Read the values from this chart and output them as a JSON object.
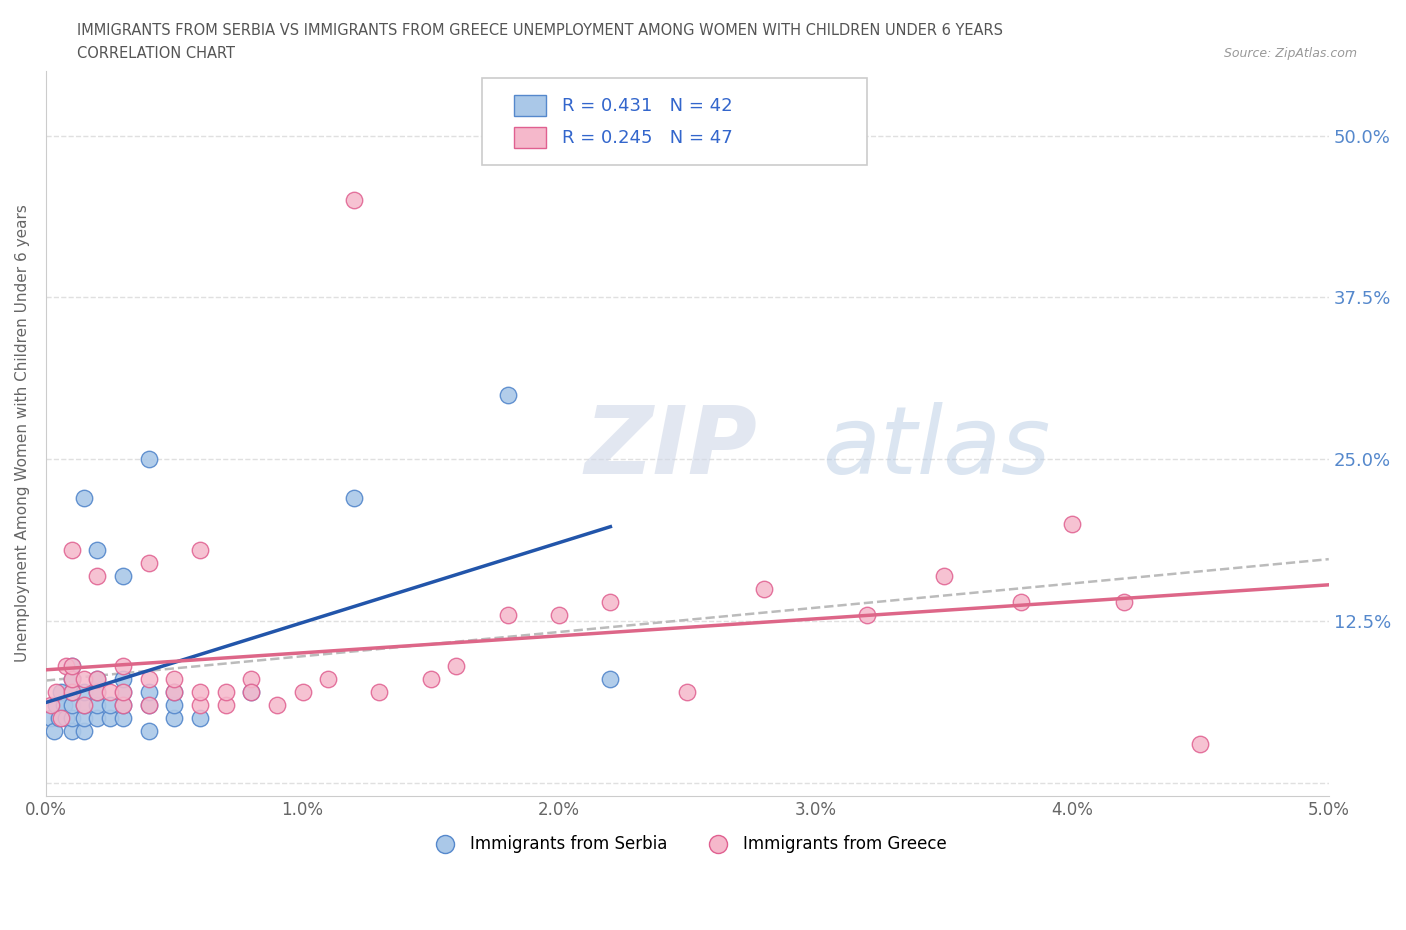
{
  "title_line1": "IMMIGRANTS FROM SERBIA VS IMMIGRANTS FROM GREECE UNEMPLOYMENT AMONG WOMEN WITH CHILDREN UNDER 6 YEARS",
  "title_line2": "CORRELATION CHART",
  "source": "Source: ZipAtlas.com",
  "ylabel": "Unemployment Among Women with Children Under 6 years",
  "xlim": [
    0.0,
    0.05
  ],
  "ylim": [
    -0.01,
    0.55
  ],
  "xticks": [
    0.0,
    0.01,
    0.02,
    0.03,
    0.04,
    0.05
  ],
  "xticklabels": [
    "0.0%",
    "1.0%",
    "2.0%",
    "3.0%",
    "4.0%",
    "5.0%"
  ],
  "yticks": [
    0.0,
    0.125,
    0.25,
    0.375,
    0.5
  ],
  "yticklabels": [
    "",
    "12.5%",
    "25.0%",
    "37.5%",
    "50.0%"
  ],
  "serbia_color": "#aac8e8",
  "serbia_edge": "#5588cc",
  "greece_color": "#f5b8cb",
  "greece_edge": "#e06090",
  "serbia_line_color": "#2255aa",
  "greece_line_color": "#dd6688",
  "trend_color": "#bbbbbb",
  "watermark_zip": "ZIP",
  "watermark_atlas": "atlas",
  "background_color": "#ffffff",
  "grid_color": "#e0e0e0",
  "serbia_x": [
    0.0002,
    0.0003,
    0.0004,
    0.0005,
    0.0006,
    0.0007,
    0.0008,
    0.001,
    0.001,
    0.001,
    0.001,
    0.001,
    0.001,
    0.0015,
    0.0015,
    0.0015,
    0.0015,
    0.0015,
    0.002,
    0.002,
    0.002,
    0.002,
    0.002,
    0.0025,
    0.0025,
    0.003,
    0.003,
    0.003,
    0.003,
    0.003,
    0.004,
    0.004,
    0.004,
    0.004,
    0.005,
    0.005,
    0.005,
    0.006,
    0.008,
    0.012,
    0.018,
    0.022
  ],
  "serbia_y": [
    0.05,
    0.04,
    0.06,
    0.05,
    0.07,
    0.06,
    0.05,
    0.04,
    0.05,
    0.06,
    0.07,
    0.08,
    0.09,
    0.04,
    0.05,
    0.06,
    0.07,
    0.22,
    0.05,
    0.06,
    0.07,
    0.18,
    0.08,
    0.05,
    0.06,
    0.05,
    0.06,
    0.07,
    0.08,
    0.16,
    0.04,
    0.06,
    0.07,
    0.25,
    0.05,
    0.06,
    0.07,
    0.05,
    0.07,
    0.22,
    0.3,
    0.08
  ],
  "greece_x": [
    0.0002,
    0.0004,
    0.0006,
    0.0008,
    0.001,
    0.001,
    0.001,
    0.001,
    0.0015,
    0.0015,
    0.002,
    0.002,
    0.002,
    0.0025,
    0.003,
    0.003,
    0.003,
    0.004,
    0.004,
    0.004,
    0.005,
    0.005,
    0.006,
    0.006,
    0.006,
    0.007,
    0.007,
    0.008,
    0.008,
    0.009,
    0.01,
    0.011,
    0.012,
    0.013,
    0.015,
    0.016,
    0.018,
    0.02,
    0.022,
    0.025,
    0.028,
    0.032,
    0.035,
    0.038,
    0.04,
    0.042,
    0.045
  ],
  "greece_y": [
    0.06,
    0.07,
    0.05,
    0.09,
    0.07,
    0.08,
    0.09,
    0.18,
    0.06,
    0.08,
    0.07,
    0.08,
    0.16,
    0.07,
    0.06,
    0.07,
    0.09,
    0.06,
    0.08,
    0.17,
    0.07,
    0.08,
    0.06,
    0.07,
    0.18,
    0.06,
    0.07,
    0.08,
    0.07,
    0.06,
    0.07,
    0.08,
    0.45,
    0.07,
    0.08,
    0.09,
    0.13,
    0.13,
    0.14,
    0.07,
    0.15,
    0.13,
    0.16,
    0.14,
    0.2,
    0.14,
    0.03
  ],
  "legend_text1": "R = 0.431   N = 42",
  "legend_text2": "R = 0.245   N = 47",
  "legend_label1": "Immigrants from Serbia",
  "legend_label2": "Immigrants from Greece"
}
